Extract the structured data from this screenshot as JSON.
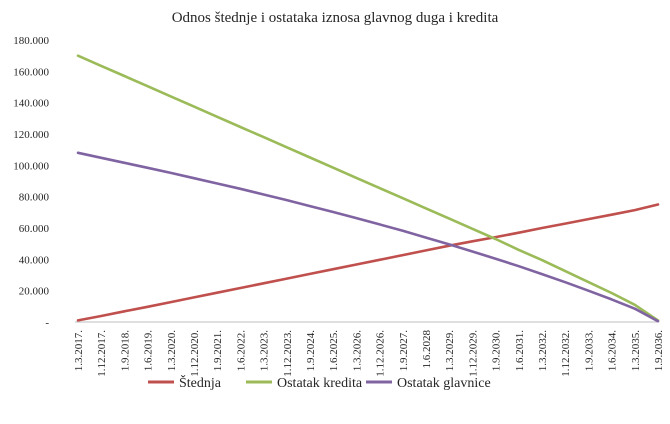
{
  "chart_data": {
    "type": "line",
    "title": "Odnos štednje i ostataka iznosa  glavnog  duga i kredita",
    "xlabel": "",
    "ylabel": "",
    "ylim": [
      0,
      180000
    ],
    "grid": false,
    "legend_position": "bottom",
    "y_ticks": [
      0,
      20000,
      40000,
      60000,
      80000,
      100000,
      120000,
      140000,
      160000,
      180000
    ],
    "y_tick_labels": [
      "-",
      "20.000",
      "40.000",
      "60.000",
      "80.000",
      "100.000",
      "120.000",
      "140.000",
      "160.000",
      "180.000"
    ],
    "x_tick_labels": [
      "1.3.2017.",
      "1.12.2017.",
      "1.9.2018.",
      "1.6.2019.",
      "1.3.2020.",
      "1.12.2020.",
      "1.9.2021.",
      "1.6.2022.",
      "1.3.2023.",
      "1.12.2023.",
      "1.9.2024.",
      "1.6.2025.",
      "1.3.2026.",
      "1.12.2026.",
      "1.9.2027.",
      "1.6.2028",
      "1.3.2029.",
      "1.12.2029.",
      "1.9.2030.",
      "1.6.2031.",
      "1.3.2032.",
      "1.12.2032.",
      "1.9.2033.",
      "1.6.2034.",
      "1.3.2035.",
      "1.9.2036."
    ],
    "x": [
      "1.3.2017.",
      "1.12.2017.",
      "1.9.2018.",
      "1.6.2019.",
      "1.3.2020.",
      "1.12.2020.",
      "1.9.2021.",
      "1.6.2022.",
      "1.3.2023.",
      "1.12.2023.",
      "1.9.2024.",
      "1.6.2025.",
      "1.3.2026.",
      "1.12.2026.",
      "1.9.2027.",
      "1.6.2028",
      "1.3.2029.",
      "1.12.2029.",
      "1.9.2030.",
      "1.6.2031.",
      "1.3.2032.",
      "1.12.2032.",
      "1.9.2033.",
      "1.6.2034.",
      "1.3.2035.",
      "1.9.2036."
    ],
    "series": [
      {
        "name": "Štednja",
        "color": "#c0504d",
        "values": [
          1000,
          3800,
          6800,
          9700,
          12700,
          15700,
          18700,
          21700,
          24700,
          27700,
          30700,
          33700,
          36700,
          39700,
          42700,
          45700,
          48700,
          51500,
          54200,
          57000,
          60000,
          62800,
          65700,
          68500,
          71400,
          75000
        ]
      },
      {
        "name": "Ostatak kredita",
        "color": "#9bbb59",
        "values": [
          170000,
          163500,
          157000,
          150500,
          144000,
          137500,
          131000,
          124500,
          118000,
          111500,
          105000,
          98500,
          92000,
          85500,
          79000,
          72500,
          66000,
          59500,
          53000,
          46000,
          39500,
          32500,
          25500,
          18500,
          11000,
          1000
        ]
      },
      {
        "name": "Ostatak glavnice",
        "color": "#8064a2",
        "values": [
          108000,
          104800,
          101600,
          98400,
          95200,
          91800,
          88400,
          85000,
          81400,
          77800,
          74000,
          70200,
          66300,
          62300,
          58200,
          53900,
          49500,
          45000,
          40400,
          35600,
          30600,
          25400,
          20000,
          14400,
          8500,
          500
        ]
      }
    ]
  }
}
